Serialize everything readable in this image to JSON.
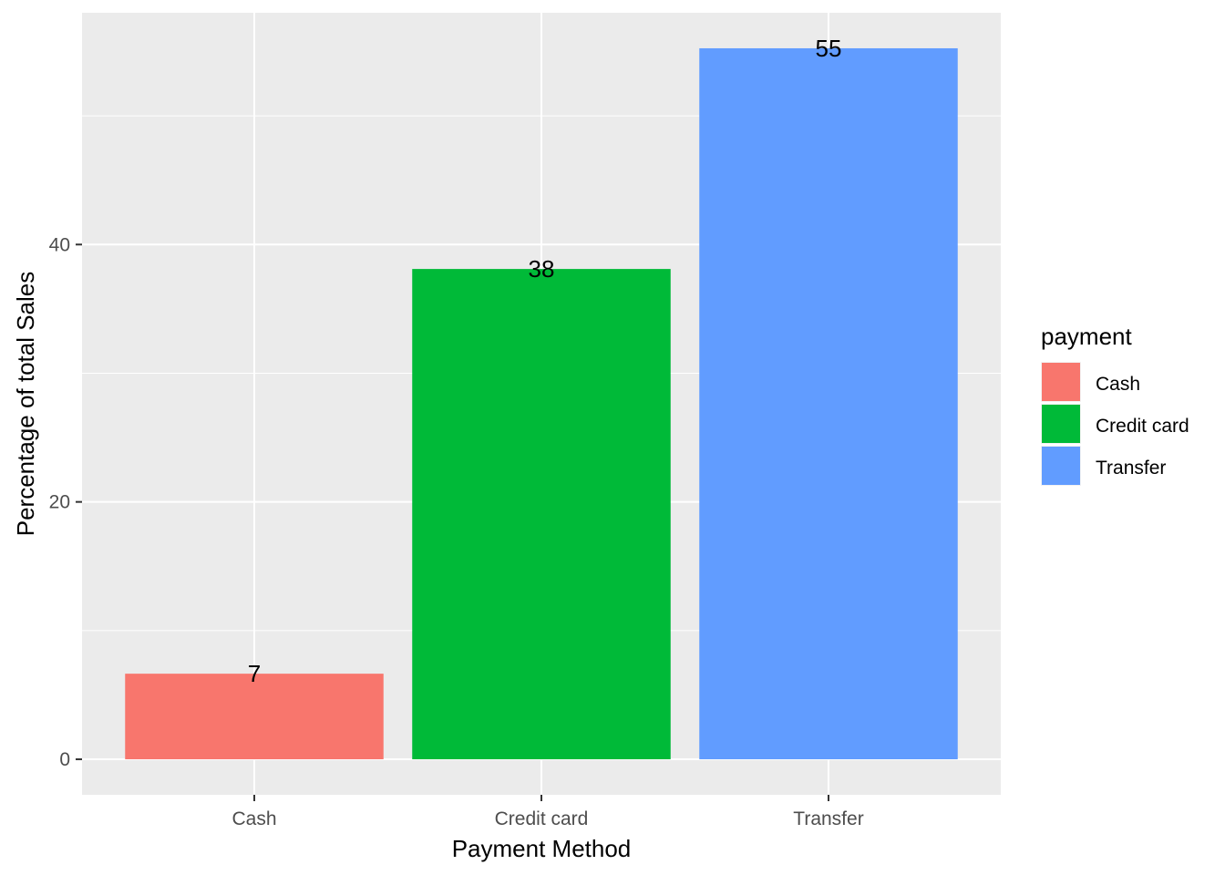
{
  "chart_data": {
    "type": "bar",
    "categories": [
      "Cash",
      "Credit card",
      "Transfer"
    ],
    "values": [
      6.65,
      38.1,
      55.25
    ],
    "data_labels": [
      "7",
      "38",
      "55"
    ],
    "colors": [
      "#F8766D",
      "#00BA38",
      "#619CFF"
    ],
    "xlabel": "Payment Method",
    "ylabel": "Percentage of total Sales",
    "ylim": [
      -2.76,
      58.01
    ],
    "y_ticks": [
      0,
      20,
      40
    ],
    "y_tick_labels": [
      "0",
      "20",
      "40"
    ],
    "grid": true,
    "panel_background": "#EBEBEB",
    "gridline_color": "#FFFFFF",
    "legend": {
      "title": "payment",
      "position": "right",
      "entries": [
        "Cash",
        "Credit card",
        "Transfer"
      ]
    }
  }
}
